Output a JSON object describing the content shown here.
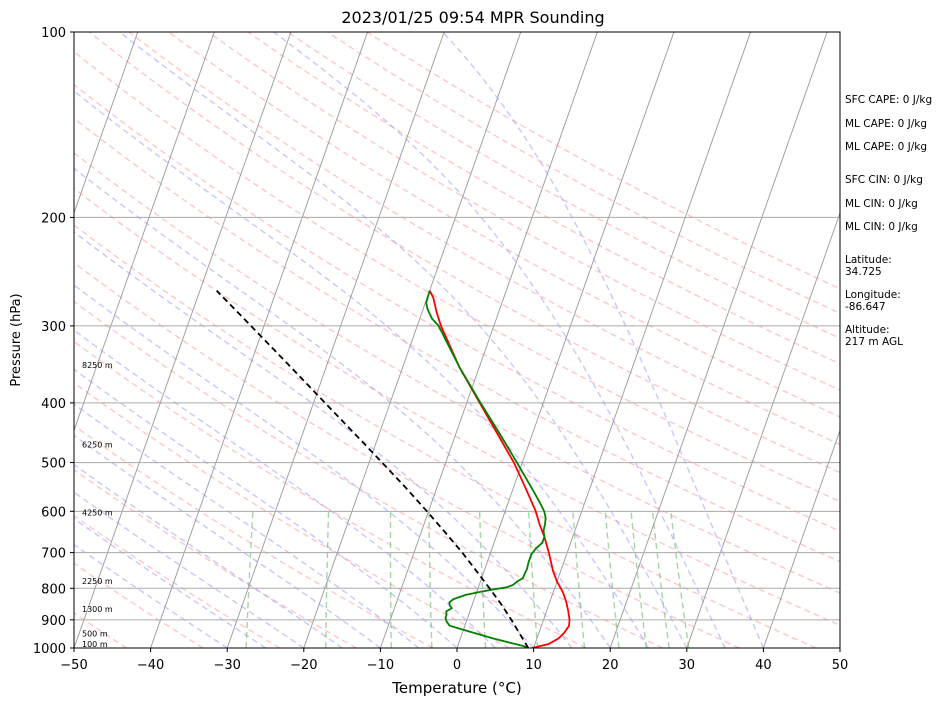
{
  "chart_data": {
    "type": "line",
    "title": "2023/01/25 09:54 MPR Sounding",
    "xlabel": "Temperature (°C)",
    "ylabel": "Pressure (hPa)",
    "xlim": [
      -50,
      50
    ],
    "ylim": [
      1000,
      100
    ],
    "y_scale": "log",
    "x_ticks": [
      "−50",
      "−40",
      "−30",
      "−20",
      "−10",
      "0",
      "10",
      "20",
      "30",
      "40",
      "50"
    ],
    "y_ticks": [
      "100",
      "200",
      "300",
      "400",
      "500",
      "600",
      "700",
      "800",
      "900",
      "1000"
    ],
    "height_labels": [
      {
        "label": "100 m",
        "p": 985
      },
      {
        "label": "500 m",
        "p": 948
      },
      {
        "label": "1300 m",
        "p": 865
      },
      {
        "label": "2250 m",
        "p": 778
      },
      {
        "label": "4250 m",
        "p": 603
      },
      {
        "label": "6250 m",
        "p": 467
      },
      {
        "label": "8250 m",
        "p": 347
      }
    ],
    "series": [
      {
        "color": "#ff0000",
        "points": [
          [
            1000,
            9.8
          ],
          [
            985,
            11.8
          ],
          [
            965,
            12.8
          ],
          [
            945,
            13.3
          ],
          [
            920,
            13.6
          ],
          [
            900,
            13.4
          ],
          [
            870,
            12.8
          ],
          [
            840,
            12.1
          ],
          [
            810,
            11.2
          ],
          [
            780,
            10.0
          ],
          [
            750,
            9.0
          ],
          [
            700,
            7.6
          ],
          [
            660,
            6.3
          ],
          [
            630,
            5.1
          ],
          [
            600,
            4.0
          ],
          [
            550,
            1.6
          ],
          [
            500,
            -1.1
          ],
          [
            450,
            -4.5
          ],
          [
            400,
            -8.3
          ],
          [
            350,
            -12.6
          ],
          [
            300,
            -16.9
          ],
          [
            285,
            -18.1
          ],
          [
            270,
            -19.2
          ],
          [
            263,
            -20.0
          ]
        ]
      },
      {
        "color": "#008000",
        "points": [
          [
            1000,
            9.3
          ],
          [
            992,
            8.5
          ],
          [
            980,
            6.6
          ],
          [
            965,
            4.3
          ],
          [
            950,
            2.2
          ],
          [
            935,
            0.1
          ],
          [
            920,
            -2.0
          ],
          [
            905,
            -2.6
          ],
          [
            893,
            -2.9
          ],
          [
            882,
            -2.9
          ],
          [
            872,
            -3.1
          ],
          [
            862,
            -2.5
          ],
          [
            853,
            -2.9
          ],
          [
            843,
            -3.1
          ],
          [
            833,
            -2.7
          ],
          [
            820,
            -1.3
          ],
          [
            810,
            0.6
          ],
          [
            803,
            2.2
          ],
          [
            797,
            3.7
          ],
          [
            790,
            4.4
          ],
          [
            780,
            4.8
          ],
          [
            770,
            5.4
          ],
          [
            762,
            5.4
          ],
          [
            745,
            5.5
          ],
          [
            725,
            5.4
          ],
          [
            705,
            5.4
          ],
          [
            690,
            5.7
          ],
          [
            675,
            6.3
          ],
          [
            660,
            6.3
          ],
          [
            645,
            5.9
          ],
          [
            630,
            5.8
          ],
          [
            615,
            5.6
          ],
          [
            600,
            5.1
          ],
          [
            580,
            4.1
          ],
          [
            550,
            2.4
          ],
          [
            500,
            -0.7
          ],
          [
            450,
            -4.2
          ],
          [
            400,
            -8.2
          ],
          [
            350,
            -12.6
          ],
          [
            300,
            -17.2
          ],
          [
            292,
            -18.4
          ],
          [
            282,
            -19.4
          ],
          [
            275,
            -19.9
          ],
          [
            263,
            -20.0
          ]
        ]
      },
      {
        "color": "#000000",
        "dashed": true,
        "points": [
          [
            1000,
            9.3
          ],
          [
            950,
            7.6
          ],
          [
            900,
            5.8
          ],
          [
            850,
            3.8
          ],
          [
            800,
            1.5
          ],
          [
            750,
            -1.0
          ],
          [
            700,
            -3.7
          ],
          [
            650,
            -6.8
          ],
          [
            600,
            -10.2
          ],
          [
            550,
            -14.0
          ],
          [
            500,
            -18.3
          ],
          [
            450,
            -23.1
          ],
          [
            400,
            -28.5
          ],
          [
            350,
            -34.6
          ],
          [
            300,
            -41.7
          ],
          [
            263,
            -47.8
          ]
        ]
      }
    ],
    "annotations": {
      "sfc_cape": "SFC CAPE: 0 J/kg",
      "ml_cape_1": "ML CAPE: 0 J/kg",
      "ml_cape_2": "ML CAPE: 0 J/kg",
      "sfc_cin": "SFC CIN: 0 J/kg",
      "ml_cin_1": "ML CIN: 0 J/kg",
      "ml_cin_2": "ML CIN: 0 J/kg",
      "latitude_label": "Latitude:",
      "latitude_value": "34.725",
      "longitude_label": "Longitude:",
      "longitude_value": "-86.647",
      "altitude_label": "Altitude:",
      "altitude_value": "217 m AGL"
    },
    "colors": {
      "temperature": "#ff0000",
      "dewpoint": "#008000",
      "parcel": "#000000",
      "dry_adiabats": "#ff9999",
      "moist_adiabats": "#9999ff",
      "mixing_ratio": "#66bb66",
      "isotherms": "#999999"
    },
    "grid": true
  }
}
